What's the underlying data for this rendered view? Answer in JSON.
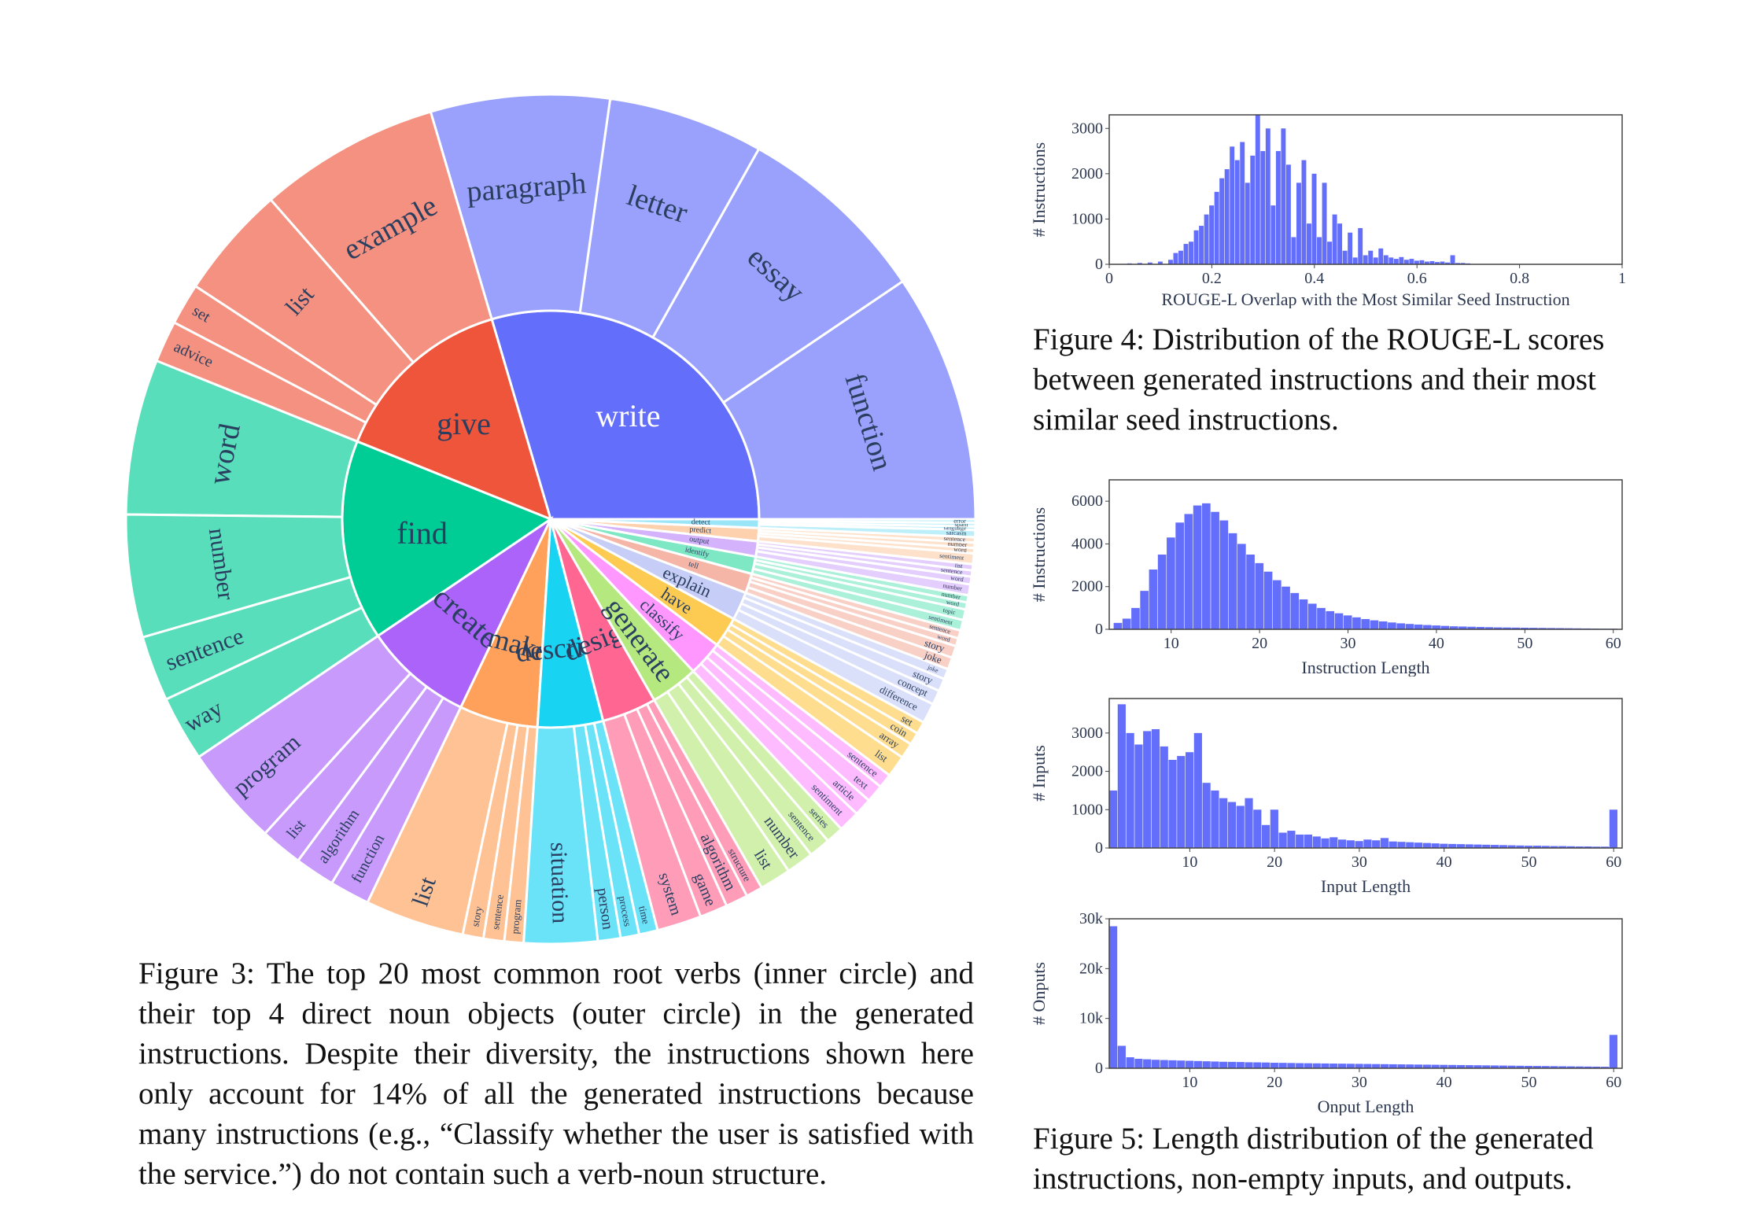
{
  "figure3": {
    "caption": "Figure 3: The top 20 most common root verbs (inner circle) and their top 4 direct noun objects (outer circle) in the generated instructions. Despite their diversity, the instructions shown here only account for 14% of all the generated instructions because many instructions (e.g., “Classify whether the user is satisfied with the service.”) do not contain such a verb-noun structure.",
    "sunburst": {
      "verbs": [
        {
          "label": "write",
          "color": "#636efa",
          "weight": 0.175,
          "nouns": [
            "function",
            "essay",
            "letter",
            "paragraph"
          ],
          "noun_weights": [
            0.32,
            0.25,
            0.2,
            0.23
          ]
        },
        {
          "label": "give",
          "color": "#ef553b",
          "weight": 0.085,
          "nouns": [
            "example",
            "list",
            "set",
            "advice"
          ],
          "noun_weights": [
            0.48,
            0.3,
            0.11,
            0.11
          ]
        },
        {
          "label": "find",
          "color": "#00cc96",
          "weight": 0.092,
          "nouns": [
            "word",
            "number",
            "sentence",
            "way"
          ],
          "noun_weights": [
            0.38,
            0.3,
            0.16,
            0.16
          ]
        },
        {
          "label": "create",
          "color": "#ab63fa",
          "weight": 0.05,
          "nouns": [
            "program",
            "list",
            "algorithm",
            "function"
          ],
          "noun_weights": [
            0.45,
            0.19,
            0.18,
            0.18
          ]
        },
        {
          "label": "make",
          "color": "#ffa15a",
          "weight": 0.036,
          "nouns": [
            "list",
            "story",
            "sentence",
            "program"
          ],
          "noun_weights": [
            0.62,
            0.13,
            0.13,
            0.12
          ]
        },
        {
          "label": "describe",
          "color": "#19d3f3",
          "weight": 0.03,
          "nouns": [
            "situation",
            "person",
            "process",
            "time"
          ],
          "noun_weights": [
            0.55,
            0.17,
            0.14,
            0.14
          ]
        },
        {
          "label": "design",
          "color": "#ff6692",
          "weight": 0.025,
          "nouns": [
            "system",
            "game",
            "algorithm",
            "structure"
          ],
          "noun_weights": [
            0.4,
            0.25,
            0.2,
            0.15
          ]
        },
        {
          "label": "generate",
          "color": "#b6e880",
          "weight": 0.022,
          "nouns": [
            "list",
            "number",
            "sentence",
            "series"
          ],
          "noun_weights": [
            0.32,
            0.28,
            0.22,
            0.18
          ]
        },
        {
          "label": "classify",
          "color": "#ff97ff",
          "weight": 0.016,
          "nouns": [
            "sentiment",
            "article",
            "text",
            "sentence"
          ],
          "noun_weights": [
            0.3,
            0.25,
            0.25,
            0.2
          ]
        },
        {
          "label": "have",
          "color": "#fecb52",
          "weight": 0.014,
          "nouns": [
            "list",
            "array",
            "coin",
            "set"
          ],
          "noun_weights": [
            0.35,
            0.25,
            0.2,
            0.2
          ]
        },
        {
          "label": "explain",
          "color": "#c6cdf7",
          "weight": 0.013,
          "nouns": [
            "difference",
            "concept",
            "story",
            "joke"
          ],
          "noun_weights": [
            0.35,
            0.25,
            0.22,
            0.18
          ]
        },
        {
          "label": "tell",
          "color": "#f5b6a8",
          "weight": 0.009,
          "nouns": [
            "joke",
            "story",
            "word",
            "sentence"
          ],
          "noun_weights": [
            0.3,
            0.3,
            0.2,
            0.2
          ]
        },
        {
          "label": "identify",
          "color": "#7ee8c5",
          "weight": 0.008,
          "nouns": [
            "sentiment",
            "topic",
            "word",
            "number"
          ],
          "noun_weights": [
            0.3,
            0.3,
            0.2,
            0.2
          ]
        },
        {
          "label": "output",
          "color": "#d4b3fc",
          "weight": 0.007,
          "nouns": [
            "number",
            "word",
            "sentence",
            "list"
          ],
          "noun_weights": [
            0.35,
            0.25,
            0.2,
            0.2
          ]
        },
        {
          "label": "predict",
          "color": "#fdd1ad",
          "weight": 0.006,
          "nouns": [
            "sentiment",
            "word",
            "number",
            "sentence"
          ],
          "noun_weights": [
            0.4,
            0.2,
            0.2,
            0.2
          ]
        },
        {
          "label": "detect",
          "color": "#9ae6f8",
          "weight": 0.004,
          "nouns": [
            "sarcasm",
            "language",
            "spam",
            "error"
          ],
          "noun_weights": [
            0.4,
            0.2,
            0.2,
            0.2
          ]
        }
      ],
      "outer_show_threshold_deg": 6
    }
  },
  "figure4": {
    "caption": "Figure 4: Distribution of the ROUGE-L scores between generated instructions and their most similar seed instructions.",
    "chart_data": {
      "type": "bar",
      "xlabel": "ROUGE-L Overlap with the Most Similar Seed Instruction",
      "ylabel": "# Instructions",
      "xlim": [
        0,
        1
      ],
      "ylim": [
        0,
        3300
      ],
      "xticks": [
        0,
        0.2,
        0.4,
        0.6,
        0.8,
        1
      ],
      "xtick_labels": [
        "0",
        "0.2",
        "0.4",
        "0.6",
        "0.8",
        "1"
      ],
      "yticks": [
        0,
        1000,
        2000,
        3000
      ],
      "ytick_labels": [
        "0",
        "1000",
        "2000",
        "3000"
      ],
      "bin_width": 0.01,
      "x": [
        0.04,
        0.06,
        0.08,
        0.1,
        0.12,
        0.13,
        0.14,
        0.15,
        0.16,
        0.17,
        0.18,
        0.19,
        0.2,
        0.21,
        0.22,
        0.23,
        0.24,
        0.25,
        0.26,
        0.27,
        0.28,
        0.29,
        0.3,
        0.31,
        0.32,
        0.33,
        0.34,
        0.35,
        0.36,
        0.37,
        0.38,
        0.39,
        0.4,
        0.41,
        0.42,
        0.43,
        0.44,
        0.45,
        0.46,
        0.47,
        0.48,
        0.49,
        0.5,
        0.51,
        0.52,
        0.53,
        0.54,
        0.55,
        0.56,
        0.57,
        0.58,
        0.59,
        0.6,
        0.61,
        0.62,
        0.63,
        0.64,
        0.65,
        0.66,
        0.67,
        0.68,
        0.69,
        0.7
      ],
      "values": [
        20,
        30,
        40,
        60,
        100,
        250,
        300,
        450,
        500,
        750,
        850,
        1100,
        1300,
        1600,
        1900,
        2100,
        2600,
        2300,
        2700,
        1800,
        2400,
        3300,
        2500,
        3000,
        1300,
        2500,
        3000,
        2200,
        600,
        1800,
        2300,
        900,
        2000,
        600,
        1800,
        500,
        1100,
        900,
        300,
        700,
        150,
        800,
        200,
        300,
        150,
        350,
        200,
        150,
        120,
        160,
        100,
        120,
        80,
        90,
        60,
        70,
        50,
        60,
        40,
        200,
        30,
        30,
        20
      ]
    }
  },
  "figure5": {
    "caption": "Figure 5: Length distribution of the generated instructions, non-empty inputs, and outputs.",
    "charts": [
      {
        "type": "bar",
        "xlabel": "Instruction Length",
        "ylabel": "# Instructions",
        "xlim": [
          3,
          61
        ],
        "ylim": [
          0,
          7000
        ],
        "xticks": [
          10,
          20,
          30,
          40,
          50,
          60
        ],
        "xtick_labels": [
          "10",
          "20",
          "30",
          "40",
          "50",
          "60"
        ],
        "yticks": [
          0,
          2000,
          4000,
          6000
        ],
        "ytick_labels": [
          "0",
          "2000",
          "4000",
          "6000"
        ],
        "x": [
          4,
          5,
          6,
          7,
          8,
          9,
          10,
          11,
          12,
          13,
          14,
          15,
          16,
          17,
          18,
          19,
          20,
          21,
          22,
          23,
          24,
          25,
          26,
          27,
          28,
          29,
          30,
          31,
          32,
          33,
          34,
          35,
          36,
          37,
          38,
          39,
          40,
          41,
          42,
          43,
          44,
          45,
          46,
          47,
          48,
          49,
          50,
          51,
          52,
          53,
          54,
          55,
          56,
          57,
          58,
          59,
          60
        ],
        "values": [
          300,
          500,
          1000,
          1800,
          2800,
          3500,
          4300,
          5000,
          5400,
          5800,
          5900,
          5500,
          5100,
          4500,
          4000,
          3500,
          3100,
          2700,
          2300,
          2000,
          1700,
          1400,
          1200,
          1000,
          850,
          750,
          650,
          560,
          480,
          420,
          370,
          320,
          280,
          250,
          220,
          200,
          180,
          160,
          140,
          130,
          120,
          110,
          100,
          90,
          85,
          80,
          75,
          70,
          65,
          60,
          55,
          50,
          45,
          40,
          35,
          30,
          30
        ]
      },
      {
        "type": "bar",
        "xlabel": "Input Length",
        "ylabel": "# Inputs",
        "xlim": [
          0.5,
          61
        ],
        "ylim": [
          0,
          3900
        ],
        "xticks": [
          10,
          20,
          30,
          40,
          50,
          60
        ],
        "xtick_labels": [
          "10",
          "20",
          "30",
          "40",
          "50",
          "60"
        ],
        "yticks": [
          0,
          1000,
          2000,
          3000
        ],
        "ytick_labels": [
          "0",
          "1000",
          "2000",
          "3000"
        ],
        "x": [
          1,
          2,
          3,
          4,
          5,
          6,
          7,
          8,
          9,
          10,
          11,
          12,
          13,
          14,
          15,
          16,
          17,
          18,
          19,
          20,
          21,
          22,
          23,
          24,
          25,
          26,
          27,
          28,
          29,
          30,
          31,
          32,
          33,
          34,
          35,
          36,
          37,
          38,
          39,
          40,
          41,
          42,
          43,
          44,
          45,
          46,
          47,
          48,
          49,
          50,
          51,
          52,
          53,
          54,
          55,
          56,
          57,
          58,
          59,
          60
        ],
        "values": [
          1500,
          3750,
          3000,
          2700,
          3050,
          3100,
          2650,
          2300,
          2400,
          2500,
          3000,
          1700,
          1500,
          1300,
          1200,
          1100,
          1300,
          1000,
          600,
          1000,
          400,
          450,
          350,
          350,
          300,
          250,
          280,
          220,
          200,
          180,
          220,
          200,
          260,
          170,
          160,
          150,
          140,
          130,
          120,
          110,
          105,
          100,
          95,
          90,
          85,
          80,
          75,
          70,
          65,
          60,
          60,
          55,
          50,
          50,
          45,
          40,
          40,
          35,
          35,
          1000
        ]
      },
      {
        "type": "bar",
        "xlabel": "Onput Length",
        "ylabel": "# Onputs",
        "xlim": [
          0.5,
          61
        ],
        "ylim": [
          0,
          30000
        ],
        "xticks": [
          10,
          20,
          30,
          40,
          50,
          60
        ],
        "xtick_labels": [
          "10",
          "20",
          "30",
          "40",
          "50",
          "60"
        ],
        "yticks": [
          0,
          10000,
          20000,
          30000
        ],
        "ytick_labels": [
          "0",
          "10k",
          "20k",
          "30k"
        ],
        "x": [
          1,
          2,
          3,
          4,
          5,
          6,
          7,
          8,
          9,
          10,
          11,
          12,
          13,
          14,
          15,
          16,
          17,
          18,
          19,
          20,
          21,
          22,
          23,
          24,
          25,
          26,
          27,
          28,
          29,
          30,
          31,
          32,
          33,
          34,
          35,
          36,
          37,
          38,
          39,
          40,
          41,
          42,
          43,
          44,
          45,
          46,
          47,
          48,
          49,
          50,
          51,
          52,
          53,
          54,
          55,
          56,
          57,
          58,
          59,
          60
        ],
        "values": [
          28500,
          4500,
          2200,
          1900,
          1800,
          1700,
          1650,
          1600,
          1550,
          1500,
          1450,
          1400,
          1350,
          1300,
          1280,
          1250,
          1200,
          1180,
          1150,
          1100,
          1080,
          1050,
          1020,
          1000,
          980,
          960,
          940,
          920,
          900,
          880,
          860,
          840,
          820,
          800,
          780,
          760,
          740,
          720,
          700,
          680,
          660,
          640,
          620,
          600,
          580,
          560,
          540,
          520,
          500,
          480,
          460,
          440,
          420,
          400,
          380,
          360,
          340,
          320,
          300,
          6700
        ]
      }
    ]
  },
  "colors": {
    "bar": "#636efa",
    "frame": "#444444",
    "tick_text": "#2c3750"
  }
}
